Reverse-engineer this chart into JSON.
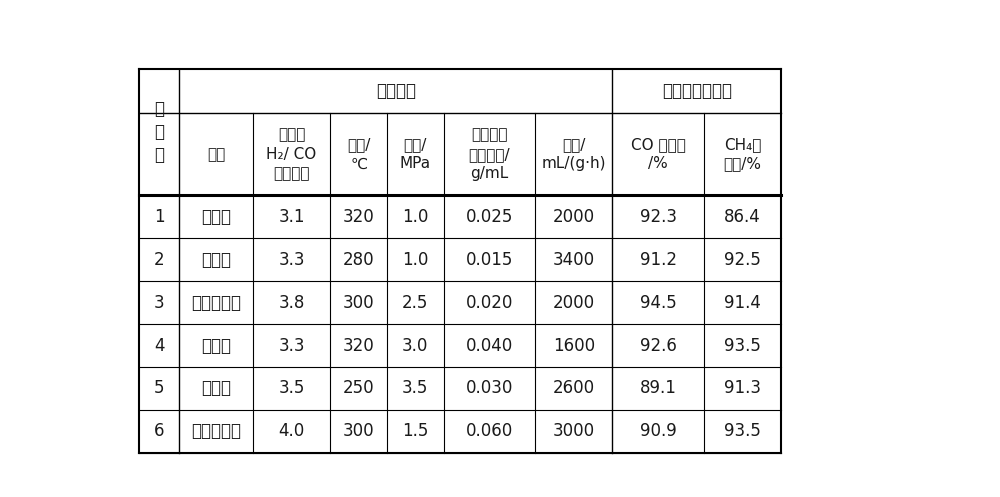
{
  "title_left": "反应条件",
  "title_right": "催化剂评价结果",
  "header_col0": "实\n施\n例",
  "headers": [
    "溶剂",
    "原料气\nH₂/ CO\n（体积）",
    "温度/\n℃",
    "压力/\nMPa",
    "浆态床催\n化剂浓度/\ng/mL",
    "空速/\nmL/(g·h)",
    "CO 转化率\n/%",
    "CH₄选\n择性/%"
  ],
  "rows": [
    [
      "1",
      "石蜡烃",
      "3.1",
      "320",
      "1.0",
      "0.025",
      "2000",
      "92.3",
      "86.4"
    ],
    [
      "2",
      "导热油",
      "3.3",
      "280",
      "1.0",
      "0.015",
      "3400",
      "91.2",
      "92.5"
    ],
    [
      "3",
      "氢化三联苯",
      "3.8",
      "300",
      "2.5",
      "0.020",
      "2000",
      "94.5",
      "91.4"
    ],
    [
      "4",
      "石蜡烃",
      "3.3",
      "320",
      "3.0",
      "0.040",
      "1600",
      "92.6",
      "93.5"
    ],
    [
      "5",
      "导热油",
      "3.5",
      "250",
      "3.5",
      "0.030",
      "2600",
      "89.1",
      "91.3"
    ],
    [
      "6",
      "氢化三联苯",
      "4.0",
      "300",
      "1.5",
      "0.060",
      "3000",
      "90.9",
      "93.5"
    ]
  ],
  "bg_color": "#ffffff",
  "text_color": "#1a1a1a",
  "line_color": "#000000",
  "font_size": 12,
  "small_font_size": 11
}
